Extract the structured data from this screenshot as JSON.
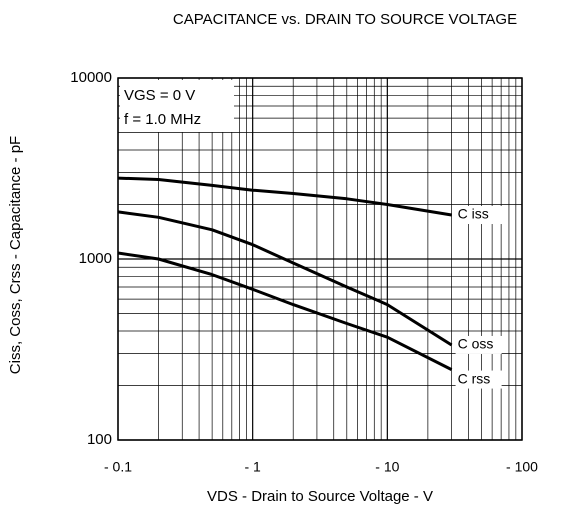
{
  "chart_data": {
    "type": "line",
    "title": "CAPACITANCE vs. DRAIN TO SOURCE VOLTAGE",
    "x_label": "VDS - Drain to Source Voltage - V",
    "y_label": "Ciss, Coss, Crss - Capacitance - pF",
    "annotations": [
      "VGS = 0 V",
      "f = 1.0 MHz"
    ],
    "x": [
      0.1,
      0.2,
      0.5,
      1,
      2,
      5,
      10,
      30
    ],
    "series": [
      {
        "name": "C iss",
        "color": "#000000",
        "values": [
          2800,
          2750,
          2550,
          2400,
          2300,
          2150,
          2000,
          1750
        ]
      },
      {
        "name": "C oss",
        "color": "#000000",
        "values": [
          1820,
          1700,
          1450,
          1200,
          950,
          700,
          560,
          335
        ]
      },
      {
        "name": "C rss",
        "color": "#000000",
        "values": [
          1080,
          1000,
          820,
          680,
          560,
          440,
          370,
          245
        ]
      }
    ],
    "xlim": [
      0.1,
      100
    ],
    "ylim": [
      100,
      10000
    ],
    "xticks": [
      {
        "value": 0.1,
        "label": "- 0.1"
      },
      {
        "value": 1,
        "label": "- 1"
      },
      {
        "value": 10,
        "label": "- 10"
      },
      {
        "value": 100,
        "label": "- 100"
      }
    ],
    "yticks": [
      100,
      1000,
      10000
    ],
    "x_log": true,
    "y_log": true,
    "grid": true,
    "minor_grid": true
  }
}
